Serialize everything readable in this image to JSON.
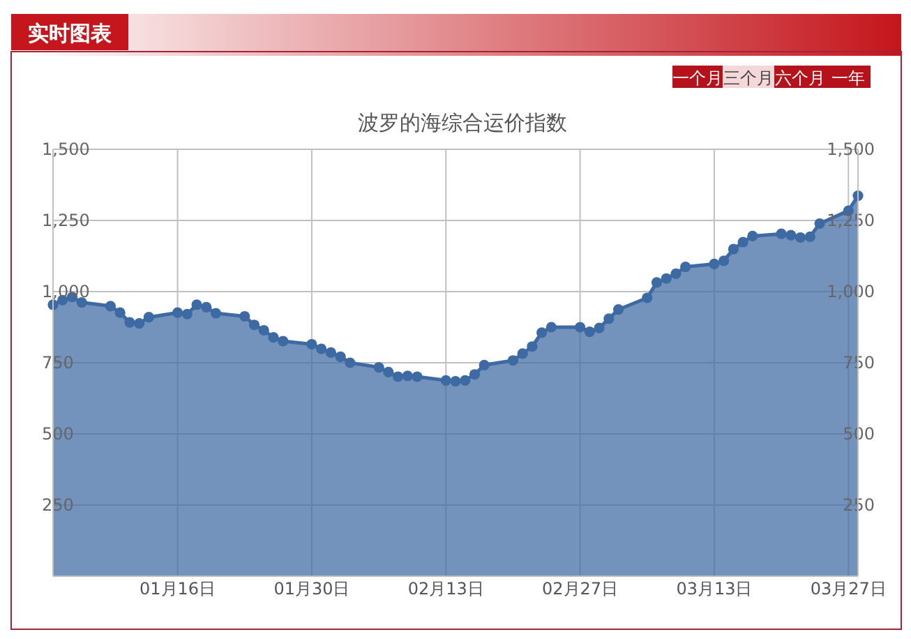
{
  "chart_data": {
    "type": "area",
    "title": "波罗的海综合运价指数",
    "annotations": [
      "实时图表",
      "一个月",
      "三个月",
      "六个月",
      "一年"
    ],
    "x": [
      "--01-03",
      "--01-04",
      "--01-05",
      "--01-06",
      "--01-09",
      "--01-10",
      "--01-11",
      "--01-12",
      "--01-13",
      "--01-16",
      "--01-17",
      "--01-18",
      "--01-19",
      "--01-20",
      "--01-23",
      "--01-24",
      "--01-25",
      "--01-26",
      "--01-27",
      "--01-30",
      "--01-31",
      "--02-01",
      "--02-02",
      "--02-03",
      "--02-06",
      "--02-07",
      "--02-08",
      "--02-09",
      "--02-10",
      "--02-13",
      "--02-14",
      "--02-15",
      "--02-16",
      "--02-17",
      "--02-20",
      "--02-21",
      "--02-22",
      "--02-23",
      "--02-24",
      "--02-27",
      "--02-28",
      "--03-01",
      "--03-02",
      "--03-03",
      "--03-06",
      "--03-07",
      "--03-08",
      "--03-09",
      "--03-10",
      "--03-13",
      "--03-14",
      "--03-15",
      "--03-16",
      "--03-17",
      "--03-20",
      "--03-21",
      "--03-22",
      "--03-23",
      "--03-24",
      "--03-27",
      "--03-28"
    ],
    "series": [
      {
        "color": "#3d6aa3",
        "values": [
          954,
          970,
          981,
          962,
          949,
          926,
          892,
          888,
          910,
          926,
          921,
          954,
          945,
          924,
          913,
          883,
          864,
          839,
          826,
          815,
          799,
          786,
          771,
          750,
          734,
          717,
          701,
          704,
          701,
          688,
          685,
          688,
          709,
          742,
          758,
          782,
          807,
          856,
          875,
          875,
          859,
          872,
          905,
          937,
          978,
          1032,
          1046,
          1063,
          1087,
          1097,
          1108,
          1149,
          1174,
          1195,
          1203,
          1198,
          1190,
          1193,
          1239,
          1284,
          1337
        ]
      }
    ],
    "xlim": [
      "--01-03",
      "--03-28"
    ],
    "xticks": [
      {
        "value": "--01-16",
        "label": "01月16日"
      },
      {
        "value": "--01-30",
        "label": "01月30日"
      },
      {
        "value": "--02-13",
        "label": "02月13日"
      },
      {
        "value": "--02-27",
        "label": "02月27日"
      },
      {
        "value": "--03-13",
        "label": "03月13日"
      },
      {
        "value": "--03-27",
        "label": "03月27日"
      }
    ],
    "ylim": [
      0,
      1500
    ],
    "yticks": [
      {
        "value": 250,
        "label": "250"
      },
      {
        "value": 500,
        "label": "500"
      },
      {
        "value": 750,
        "label": "750"
      },
      {
        "value": 1000,
        "label": "1,000"
      },
      {
        "value": 1250,
        "label": "1,250"
      },
      {
        "value": 1500,
        "label": "1,500"
      }
    ],
    "y2lim": [
      0,
      1500
    ],
    "y2ticks": [
      {
        "value": 250,
        "label": "250"
      },
      {
        "value": 500,
        "label": "500"
      },
      {
        "value": 750,
        "label": "750"
      },
      {
        "value": 1000,
        "label": "1,000"
      },
      {
        "value": 1250,
        "label": "1,250"
      },
      {
        "value": 1500,
        "label": "1,500"
      }
    ],
    "grid": true,
    "marker": "circle",
    "line_style": "solid"
  }
}
